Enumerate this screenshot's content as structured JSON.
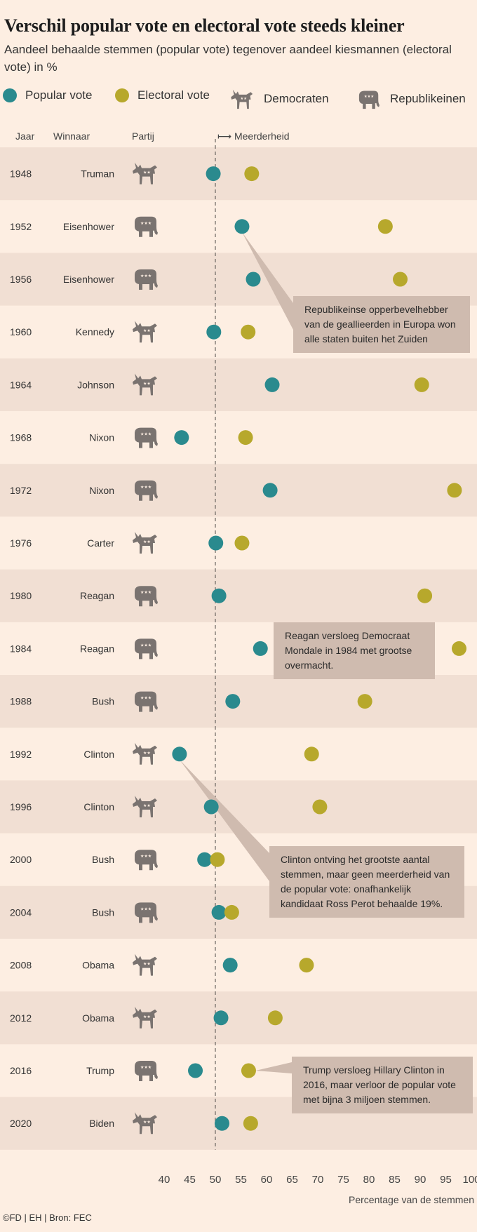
{
  "title": "Verschil popular vote en electoral vote steeds kleiner",
  "subtitle": "Aandeel behaalde stemmen (popular vote) tegenover aandeel kiesmannen (electoral vote) in %",
  "legend": {
    "popular": "Popular vote",
    "electoral": "Electoral vote",
    "dem": "Democraten",
    "rep": "Republikeinen"
  },
  "columns": {
    "year": "Jaar",
    "winner": "Winnaar",
    "party": "Partij",
    "majority": "⟼  Meerderheid"
  },
  "colors": {
    "popular": "#2a8a8e",
    "electoral": "#b7a82c",
    "icon": "#7a7370",
    "band": "#f1dfd3",
    "note": "#cfbbaf"
  },
  "x_axis_title": "Percentage van de stemmen",
  "source": "©FD | EH | Bron: FEC",
  "notes": {
    "eisenhower": "Republikeinse opperbevelhebber van de geallieerden in Europa won alle staten buiten het Zuiden",
    "reagan": "Reagan versloeg Democraat Mondale in 1984 met grootse overmacht.",
    "clinton": "Clinton ontving het grootste aantal stemmen, maar geen meerderheid van de popular vote: onafhankelijk kandidaat Ross Perot behaalde 19%.",
    "trump": "Trump versloeg Hillary Clinton in 2016, maar verloor de popular vote met bijna 3 miljoen stemmen."
  },
  "chart_data": {
    "type": "scatter",
    "title": "Verschil popular vote en electoral vote steeds kleiner",
    "xlabel": "Percentage van de stemmen",
    "xlim": [
      37,
      101
    ],
    "xticks": [
      40,
      45,
      50,
      55,
      60,
      65,
      70,
      75,
      80,
      85,
      90,
      95,
      100
    ],
    "majority_line": 50,
    "series": [
      {
        "name": "Popular vote",
        "color": "#2a8a8e"
      },
      {
        "name": "Electoral vote",
        "color": "#b7a82c"
      }
    ],
    "rows": [
      {
        "year": "1948",
        "winner": "Truman",
        "party": "D",
        "popular": 49.6,
        "electoral": 57.1
      },
      {
        "year": "1952",
        "winner": "Eisenhower",
        "party": "R",
        "popular": 55.2,
        "electoral": 83.2
      },
      {
        "year": "1956",
        "winner": "Eisenhower",
        "party": "R",
        "popular": 57.4,
        "electoral": 86.1
      },
      {
        "year": "1960",
        "winner": "Kennedy",
        "party": "D",
        "popular": 49.7,
        "electoral": 56.4
      },
      {
        "year": "1964",
        "winner": "Johnson",
        "party": "D",
        "popular": 61.1,
        "electoral": 90.3
      },
      {
        "year": "1968",
        "winner": "Nixon",
        "party": "R",
        "popular": 43.4,
        "electoral": 55.9
      },
      {
        "year": "1972",
        "winner": "Nixon",
        "party": "R",
        "popular": 60.7,
        "electoral": 96.7
      },
      {
        "year": "1976",
        "winner": "Carter",
        "party": "D",
        "popular": 50.1,
        "electoral": 55.2
      },
      {
        "year": "1980",
        "winner": "Reagan",
        "party": "R",
        "popular": 50.7,
        "electoral": 90.9
      },
      {
        "year": "1984",
        "winner": "Reagan",
        "party": "R",
        "popular": 58.8,
        "electoral": 97.6
      },
      {
        "year": "1988",
        "winner": "Bush",
        "party": "R",
        "popular": 53.4,
        "electoral": 79.2
      },
      {
        "year": "1992",
        "winner": "Clinton",
        "party": "D",
        "popular": 43.0,
        "electoral": 68.8
      },
      {
        "year": "1996",
        "winner": "Clinton",
        "party": "D",
        "popular": 49.2,
        "electoral": 70.4
      },
      {
        "year": "2000",
        "winner": "Bush",
        "party": "R",
        "popular": 47.9,
        "electoral": 50.4
      },
      {
        "year": "2004",
        "winner": "Bush",
        "party": "R",
        "popular": 50.7,
        "electoral": 53.2
      },
      {
        "year": "2008",
        "winner": "Obama",
        "party": "D",
        "popular": 52.9,
        "electoral": 67.8
      },
      {
        "year": "2012",
        "winner": "Obama",
        "party": "D",
        "popular": 51.1,
        "electoral": 61.7
      },
      {
        "year": "2016",
        "winner": "Trump",
        "party": "R",
        "popular": 46.1,
        "electoral": 56.5
      },
      {
        "year": "2020",
        "winner": "Biden",
        "party": "D",
        "popular": 51.3,
        "electoral": 56.9
      }
    ]
  }
}
